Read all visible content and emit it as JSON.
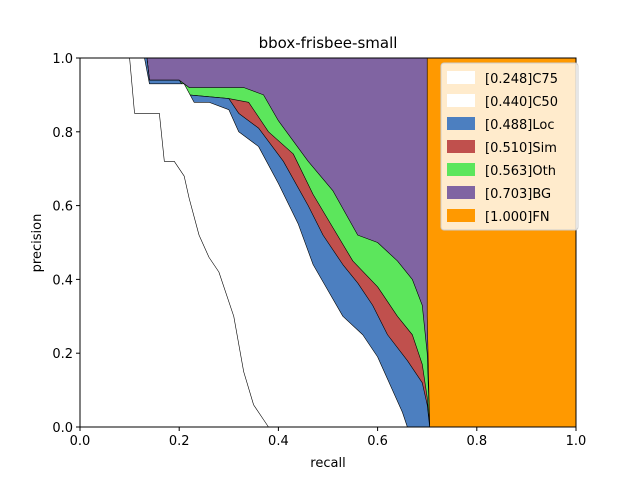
{
  "chart_data": {
    "type": "area",
    "title": "bbox-frisbee-small",
    "xlabel": "recall",
    "ylabel": "precision",
    "xlim": [
      0,
      1
    ],
    "ylim": [
      0,
      1
    ],
    "xticks": [
      "0.0",
      "0.2",
      "0.4",
      "0.6",
      "0.8",
      "1.0"
    ],
    "yticks": [
      "0.0",
      "0.2",
      "0.4",
      "0.6",
      "0.8",
      "1.0"
    ],
    "legend_position": "top-right",
    "series": [
      {
        "name": "[0.248]C75",
        "color": "#ffffff",
        "points": [
          [
            0.0,
            1.0
          ],
          [
            0.1,
            1.0
          ],
          [
            0.11,
            0.85
          ],
          [
            0.16,
            0.85
          ],
          [
            0.17,
            0.72
          ],
          [
            0.19,
            0.72
          ],
          [
            0.21,
            0.68
          ],
          [
            0.22,
            0.62
          ],
          [
            0.24,
            0.52
          ],
          [
            0.26,
            0.46
          ],
          [
            0.28,
            0.42
          ],
          [
            0.31,
            0.3
          ],
          [
            0.33,
            0.15
          ],
          [
            0.35,
            0.06
          ],
          [
            0.37,
            0.02
          ],
          [
            0.38,
            0.0
          ]
        ]
      },
      {
        "name": "[0.440]C50",
        "color": "#ffffff",
        "points": [
          [
            0.0,
            1.0
          ],
          [
            0.13,
            1.0
          ],
          [
            0.14,
            0.93
          ],
          [
            0.21,
            0.93
          ],
          [
            0.23,
            0.88
          ],
          [
            0.26,
            0.88
          ],
          [
            0.3,
            0.86
          ],
          [
            0.32,
            0.8
          ],
          [
            0.36,
            0.76
          ],
          [
            0.4,
            0.66
          ],
          [
            0.44,
            0.55
          ],
          [
            0.47,
            0.44
          ],
          [
            0.5,
            0.37
          ],
          [
            0.53,
            0.3
          ],
          [
            0.57,
            0.25
          ],
          [
            0.6,
            0.19
          ],
          [
            0.63,
            0.1
          ],
          [
            0.65,
            0.04
          ],
          [
            0.66,
            0.0
          ]
        ]
      },
      {
        "name": "[0.488]Loc",
        "color": "#4c7fc0",
        "points": [
          [
            0.0,
            1.0
          ],
          [
            0.135,
            1.0
          ],
          [
            0.14,
            0.94
          ],
          [
            0.2,
            0.94
          ],
          [
            0.22,
            0.9
          ],
          [
            0.3,
            0.89
          ],
          [
            0.32,
            0.85
          ],
          [
            0.36,
            0.81
          ],
          [
            0.41,
            0.72
          ],
          [
            0.46,
            0.6
          ],
          [
            0.49,
            0.52
          ],
          [
            0.53,
            0.44
          ],
          [
            0.56,
            0.39
          ],
          [
            0.59,
            0.33
          ],
          [
            0.62,
            0.25
          ],
          [
            0.66,
            0.18
          ],
          [
            0.69,
            0.12
          ],
          [
            0.7,
            0.06
          ],
          [
            0.705,
            0.0
          ]
        ]
      },
      {
        "name": "[0.510]Sim",
        "color": "#c0504d",
        "points": [
          [
            0.0,
            1.0
          ],
          [
            0.135,
            1.0
          ],
          [
            0.14,
            0.94
          ],
          [
            0.2,
            0.94
          ],
          [
            0.22,
            0.9
          ],
          [
            0.3,
            0.89
          ],
          [
            0.34,
            0.88
          ],
          [
            0.38,
            0.8
          ],
          [
            0.43,
            0.74
          ],
          [
            0.47,
            0.63
          ],
          [
            0.51,
            0.54
          ],
          [
            0.55,
            0.45
          ],
          [
            0.6,
            0.38
          ],
          [
            0.64,
            0.3
          ],
          [
            0.67,
            0.25
          ],
          [
            0.69,
            0.17
          ],
          [
            0.7,
            0.08
          ],
          [
            0.705,
            0.0
          ]
        ]
      },
      {
        "name": "[0.563]Oth",
        "color": "#5ce65c",
        "points": [
          [
            0.0,
            1.0
          ],
          [
            0.135,
            1.0
          ],
          [
            0.14,
            0.94
          ],
          [
            0.2,
            0.94
          ],
          [
            0.22,
            0.92
          ],
          [
            0.33,
            0.92
          ],
          [
            0.37,
            0.9
          ],
          [
            0.4,
            0.83
          ],
          [
            0.46,
            0.72
          ],
          [
            0.51,
            0.64
          ],
          [
            0.56,
            0.52
          ],
          [
            0.6,
            0.5
          ],
          [
            0.64,
            0.45
          ],
          [
            0.67,
            0.4
          ],
          [
            0.69,
            0.33
          ],
          [
            0.7,
            0.2
          ],
          [
            0.705,
            0.0
          ]
        ]
      },
      {
        "name": "[0.703]BG",
        "color": "#8064a2",
        "points": [
          [
            0.0,
            1.0
          ],
          [
            0.7,
            1.0
          ],
          [
            0.7,
            0.3
          ],
          [
            0.705,
            0.0
          ]
        ]
      },
      {
        "name": "[1.000]FN",
        "color": "#ff9900",
        "points": [
          [
            0.0,
            1.0
          ],
          [
            1.0,
            1.0
          ],
          [
            1.0,
            0.0
          ]
        ]
      }
    ]
  }
}
